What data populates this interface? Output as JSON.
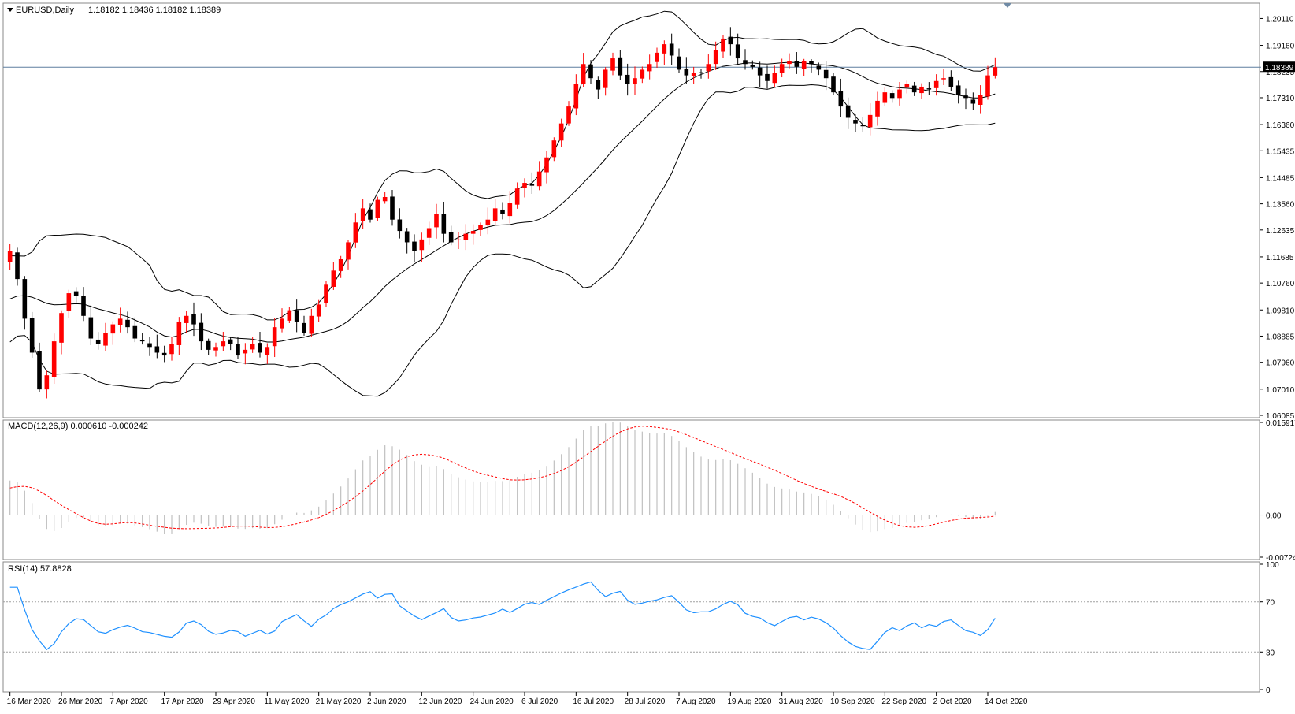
{
  "header": {
    "symbol_label": "EURUSD,Daily",
    "ohlc": "1.18182 1.18436 1.18182 1.18389"
  },
  "colors": {
    "bull": "#ff0000",
    "bear": "#000000",
    "bands": "#000000",
    "macd_hist": "#c0c0c0",
    "macd_signal": "#ff0000",
    "rsi_line": "#1e90ff",
    "price_line": "#5f7f9f",
    "frame": "#888888"
  },
  "chart_data": [
    {
      "type": "candlestick",
      "name": "main",
      "title": "EURUSD,Daily",
      "ylim": [
        1.06085,
        1.2054
      ],
      "y_ticks": [
        "1.20110",
        "1.19160",
        "1.18235",
        "1.17310",
        "1.16360",
        "1.15435",
        "1.14485",
        "1.13560",
        "1.12635",
        "1.11685",
        "1.10760",
        "1.09810",
        "1.08885",
        "1.07960",
        "1.07010",
        "1.06085"
      ],
      "current_price": "1.18389",
      "x_ticks": [
        "16 Mar 2020",
        "26 Mar 2020",
        "7 Apr 2020",
        "17 Apr 2020",
        "29 Apr 2020",
        "11 May 2020",
        "21 May 2020",
        "2 Jun 2020",
        "12 Jun 2020",
        "24 Jun 2020",
        "6 Jul 2020",
        "16 Jul 2020",
        "28 Jul 2020",
        "7 Aug 2020",
        "19 Aug 2020",
        "31 Aug 2020",
        "10 Sep 2020",
        "22 Sep 2020",
        "2 Oct 2020",
        "14 Oct 2020"
      ],
      "close_path": [
        1.119,
        1.109,
        1.095,
        1.083,
        1.07,
        1.075,
        1.087,
        1.097,
        1.104,
        1.103,
        1.096,
        1.088,
        1.086,
        1.09,
        1.093,
        1.095,
        1.092,
        1.088,
        1.087,
        1.085,
        1.083,
        1.082,
        1.086,
        1.094,
        1.096,
        1.093,
        1.087,
        1.084,
        1.085,
        1.087,
        1.086,
        1.082,
        1.084,
        1.086,
        1.083,
        1.085,
        1.092,
        1.095,
        1.098,
        1.094,
        1.09,
        1.096,
        1.1,
        1.107,
        1.112,
        1.116,
        1.122,
        1.129,
        1.134,
        1.13,
        1.137,
        1.138,
        1.13,
        1.126,
        1.122,
        1.119,
        1.123,
        1.127,
        1.132,
        1.125,
        1.122,
        1.123,
        1.125,
        1.126,
        1.128,
        1.13,
        1.134,
        1.132,
        1.136,
        1.141,
        1.143,
        1.142,
        1.147,
        1.152,
        1.158,
        1.164,
        1.17,
        1.178,
        1.185,
        1.18,
        1.176,
        1.183,
        1.187,
        1.181,
        1.178,
        1.18,
        1.183,
        1.185,
        1.189,
        1.192,
        1.188,
        1.183,
        1.181,
        1.182,
        1.182,
        1.185,
        1.19,
        1.194,
        1.192,
        1.187,
        1.185,
        1.184,
        1.181,
        1.179,
        1.182,
        1.185,
        1.186,
        1.184,
        1.186,
        1.185,
        1.183,
        1.18,
        1.175,
        1.17,
        1.166,
        1.164,
        1.163,
        1.167,
        1.172,
        1.175,
        1.173,
        1.176,
        1.178,
        1.175,
        1.177,
        1.176,
        1.179,
        1.18,
        1.177,
        1.174,
        1.173,
        1.171,
        1.174,
        1.181,
        1.1839
      ]
    },
    {
      "type": "macd",
      "label": "MACD(12,26,9) 0.000610 -0.000242",
      "ylim": [
        -0.007244,
        0.015917
      ],
      "y_ticks": [
        "0.015917",
        "0.00",
        "-0.007244"
      ]
    },
    {
      "type": "line",
      "label": "RSI(14) 57.8828",
      "ylim": [
        0,
        100
      ],
      "levels": [
        30,
        70
      ],
      "y_ticks": [
        "100",
        "70",
        "30",
        "0"
      ]
    }
  ]
}
